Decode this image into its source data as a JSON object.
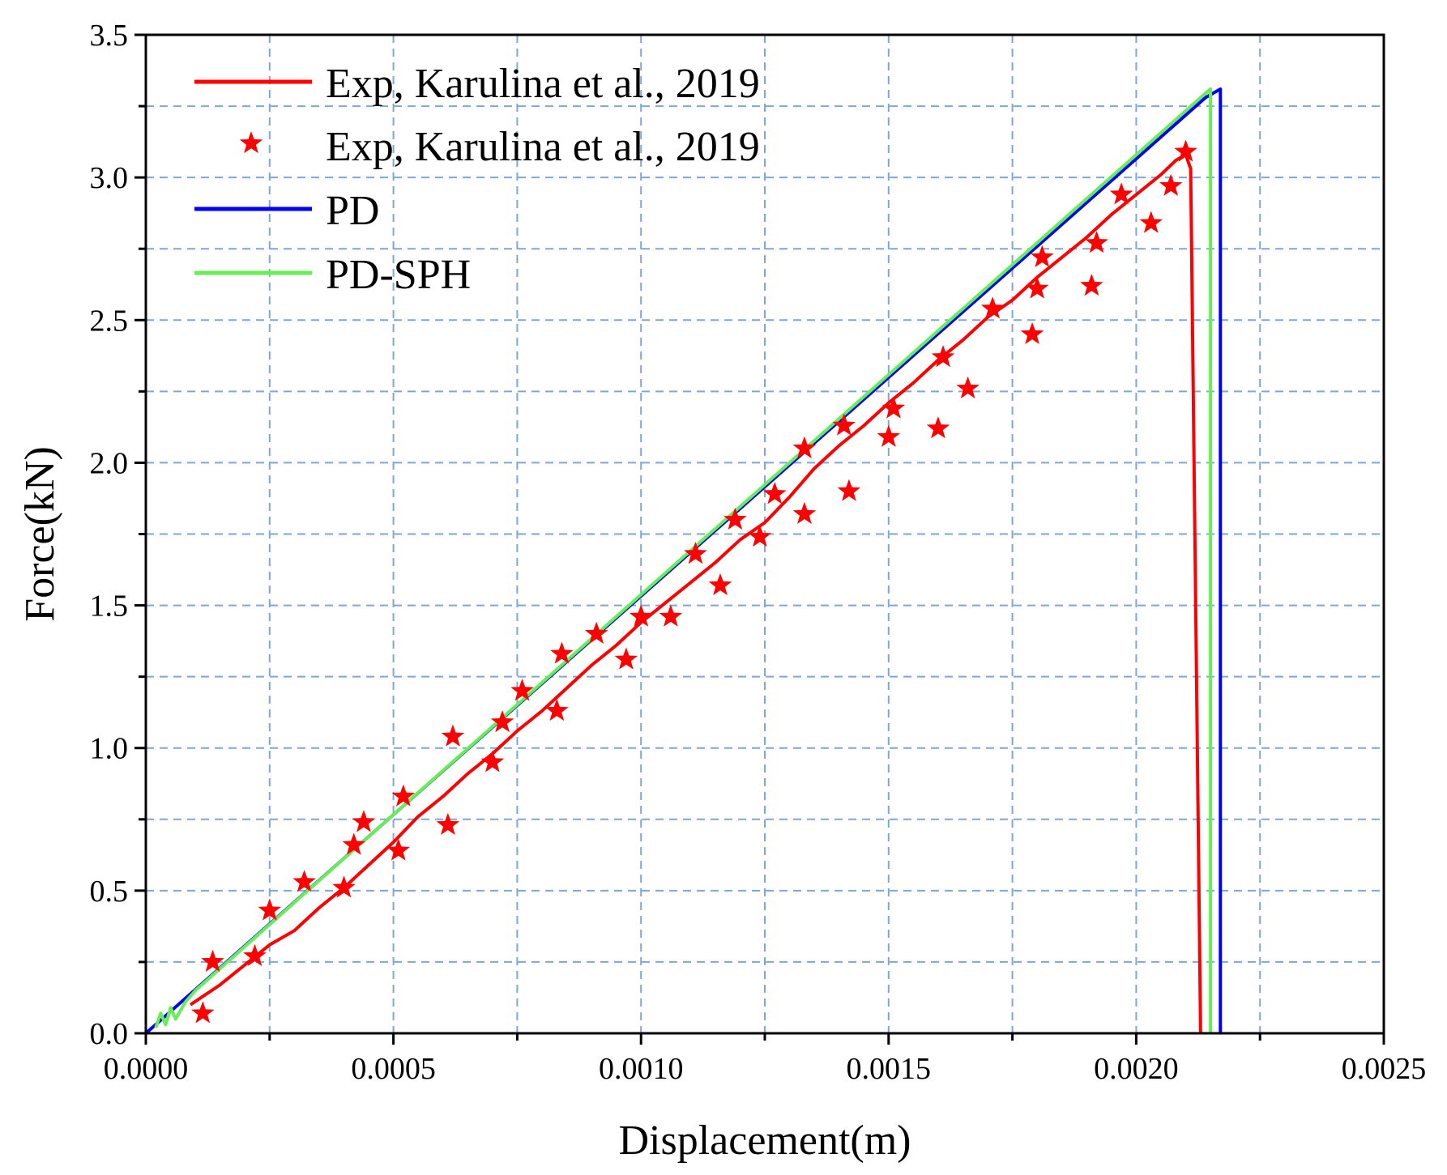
{
  "chart_data": {
    "type": "line",
    "title": "",
    "xlabel": "Displacement(m)",
    "ylabel": "Force(kN)",
    "xlim": [
      0.0,
      0.0025
    ],
    "ylim": [
      0.0,
      3.5
    ],
    "x_ticks": [
      0.0,
      0.0005,
      0.001,
      0.0015,
      0.002,
      0.0025
    ],
    "x_tick_labels": [
      "0.0000",
      "0.0005",
      "0.0010",
      "0.0015",
      "0.0020",
      "0.0025"
    ],
    "y_ticks": [
      0.0,
      0.5,
      1.0,
      1.5,
      2.0,
      2.5,
      3.0,
      3.5
    ],
    "y_tick_labels": [
      "0.0",
      "0.5",
      "1.0",
      "1.5",
      "2.0",
      "2.5",
      "3.0",
      "3.5"
    ],
    "grid": true,
    "legend_position": "top-left",
    "series": [
      {
        "name": "Exp, Karulina et al., 2019",
        "style": "line",
        "color": "#ff0000",
        "points": [
          [
            9e-05,
            0.1
          ],
          [
            0.00015,
            0.17
          ],
          [
            0.0002,
            0.24
          ],
          [
            0.00025,
            0.31
          ],
          [
            0.0003,
            0.36
          ],
          [
            0.00035,
            0.44
          ],
          [
            0.0004,
            0.51
          ],
          [
            0.00045,
            0.59
          ],
          [
            0.0005,
            0.67
          ],
          [
            0.00055,
            0.76
          ],
          [
            0.0006,
            0.83
          ],
          [
            0.00065,
            0.91
          ],
          [
            0.0007,
            0.98
          ],
          [
            0.00075,
            1.06
          ],
          [
            0.0008,
            1.13
          ],
          [
            0.00085,
            1.21
          ],
          [
            0.0009,
            1.29
          ],
          [
            0.00095,
            1.36
          ],
          [
            0.001,
            1.44
          ],
          [
            0.00105,
            1.51
          ],
          [
            0.0011,
            1.58
          ],
          [
            0.00115,
            1.65
          ],
          [
            0.0012,
            1.73
          ],
          [
            0.00125,
            1.79
          ],
          [
            0.0013,
            1.88
          ],
          [
            0.00135,
            1.98
          ],
          [
            0.0014,
            2.06
          ],
          [
            0.00145,
            2.13
          ],
          [
            0.0015,
            2.21
          ],
          [
            0.00155,
            2.28
          ],
          [
            0.0016,
            2.36
          ],
          [
            0.00165,
            2.43
          ],
          [
            0.0017,
            2.51
          ],
          [
            0.00175,
            2.57
          ],
          [
            0.0018,
            2.65
          ],
          [
            0.00185,
            2.72
          ],
          [
            0.0019,
            2.79
          ],
          [
            0.00195,
            2.87
          ],
          [
            0.002,
            2.94
          ],
          [
            0.00205,
            3.01
          ],
          [
            0.00208,
            3.06
          ],
          [
            0.0021,
            3.08
          ],
          [
            0.00211,
            3.03
          ],
          [
            0.00213,
            0.0
          ]
        ]
      },
      {
        "name": "Exp, Karulina et al., 2019",
        "style": "star",
        "color": "#ff0000",
        "points": [
          [
            0.000115,
            0.07
          ],
          [
            0.000135,
            0.25
          ],
          [
            0.00022,
            0.27
          ],
          [
            0.00025,
            0.43
          ],
          [
            0.00032,
            0.53
          ],
          [
            0.0004,
            0.51
          ],
          [
            0.00042,
            0.66
          ],
          [
            0.00044,
            0.74
          ],
          [
            0.00051,
            0.64
          ],
          [
            0.00052,
            0.83
          ],
          [
            0.00061,
            0.73
          ],
          [
            0.00062,
            1.04
          ],
          [
            0.0007,
            0.95
          ],
          [
            0.00072,
            1.09
          ],
          [
            0.00076,
            1.2
          ],
          [
            0.00083,
            1.13
          ],
          [
            0.00084,
            1.33
          ],
          [
            0.00091,
            1.4
          ],
          [
            0.00097,
            1.31
          ],
          [
            0.001,
            1.46
          ],
          [
            0.00106,
            1.46
          ],
          [
            0.00111,
            1.68
          ],
          [
            0.00116,
            1.57
          ],
          [
            0.00119,
            1.8
          ],
          [
            0.00124,
            1.74
          ],
          [
            0.00127,
            1.89
          ],
          [
            0.00133,
            1.82
          ],
          [
            0.00133,
            2.05
          ],
          [
            0.00141,
            2.13
          ],
          [
            0.00142,
            1.9
          ],
          [
            0.0015,
            2.09
          ],
          [
            0.00151,
            2.19
          ],
          [
            0.0016,
            2.12
          ],
          [
            0.00161,
            2.37
          ],
          [
            0.00166,
            2.26
          ],
          [
            0.00171,
            2.54
          ],
          [
            0.00179,
            2.45
          ],
          [
            0.0018,
            2.61
          ],
          [
            0.00181,
            2.72
          ],
          [
            0.00191,
            2.62
          ],
          [
            0.00192,
            2.77
          ],
          [
            0.00197,
            2.94
          ],
          [
            0.00203,
            2.84
          ],
          [
            0.00207,
            2.97
          ],
          [
            0.0021,
            3.09
          ]
        ]
      },
      {
        "name": "PD",
        "style": "line",
        "color": "#0000ff",
        "points": [
          [
            0.0,
            0.0
          ],
          [
            0.00214,
            3.28
          ],
          [
            0.00217,
            3.31
          ],
          [
            0.00217,
            0.0
          ]
        ]
      },
      {
        "name": "PD-SPH",
        "style": "line",
        "color": "#66ee55",
        "points": [
          [
            2e-05,
            0.02
          ],
          [
            3e-05,
            0.07
          ],
          [
            4e-05,
            0.03
          ],
          [
            5e-05,
            0.09
          ],
          [
            6e-05,
            0.05
          ],
          [
            8e-05,
            0.11
          ],
          [
            0.0001,
            0.15
          ],
          [
            0.00213,
            3.28
          ],
          [
            0.00215,
            3.31
          ],
          [
            0.00215,
            0.0
          ]
        ]
      }
    ]
  }
}
